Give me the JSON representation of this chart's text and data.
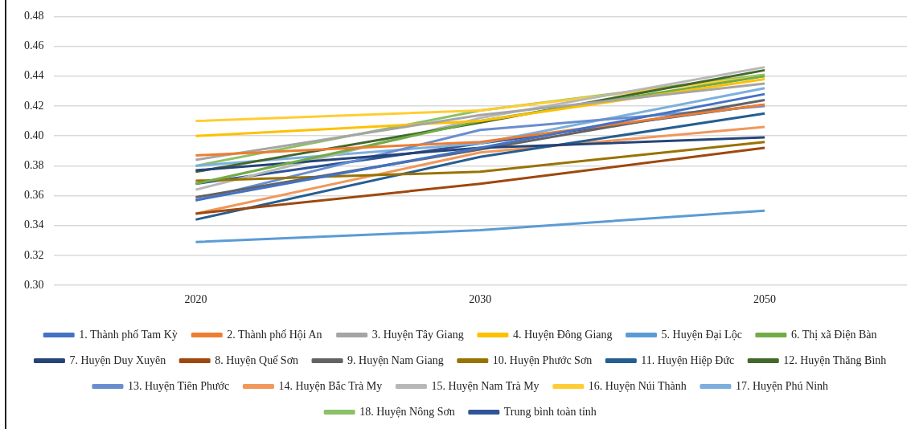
{
  "chart_data": {
    "type": "line",
    "categories": [
      "2020",
      "2030",
      "2050"
    ],
    "ylim": [
      0.3,
      0.48
    ],
    "yticks": [
      {
        "value": 0.3,
        "label": "0.30"
      },
      {
        "value": 0.32,
        "label": "0.32"
      },
      {
        "value": 0.34,
        "label": "0.34"
      },
      {
        "value": 0.36,
        "label": "0.36"
      },
      {
        "value": 0.38,
        "label": "0.38"
      },
      {
        "value": 0.4,
        "label": "0.40"
      },
      {
        "value": 0.42,
        "label": "0.42"
      },
      {
        "value": 0.44,
        "label": "0.44"
      },
      {
        "value": 0.46,
        "label": "0.46"
      },
      {
        "value": 0.48,
        "label": "0.48"
      }
    ],
    "grid": "y",
    "legend": "bottom",
    "marker": "none",
    "line_style": "solid",
    "series": [
      {
        "name": "1. Thành phố Tam Kỳ",
        "color": "#4472c4",
        "values": [
          0.357,
          0.392,
          0.428
        ]
      },
      {
        "name": "2. Thành phố Hội An",
        "color": "#ed7d31",
        "values": [
          0.387,
          0.396,
          0.421
        ]
      },
      {
        "name": "3. Huyện Tây Giang",
        "color": "#a5a5a5",
        "values": [
          0.384,
          0.414,
          0.435
        ]
      },
      {
        "name": "4. Huyện Đông Giang",
        "color": "#ffc000",
        "values": [
          0.4,
          0.41,
          0.438
        ]
      },
      {
        "name": "5. Huyện Đại Lộc",
        "color": "#5b9bd5",
        "values": [
          0.329,
          0.337,
          0.35
        ]
      },
      {
        "name": "6. Thị xã Điện Bàn",
        "color": "#70ad47",
        "values": [
          0.368,
          0.41,
          0.44
        ]
      },
      {
        "name": "7. Huyện Duy Xuyên",
        "color": "#264478",
        "values": [
          0.377,
          0.392,
          0.399
        ]
      },
      {
        "name": "8. Huyện Quế Sơn",
        "color": "#9e480e",
        "values": [
          0.348,
          0.368,
          0.392
        ]
      },
      {
        "name": "9. Huyện Nam Giang",
        "color": "#636363",
        "values": [
          0.359,
          0.391,
          0.424
        ]
      },
      {
        "name": "10. Huyện Phước Sơn",
        "color": "#997300",
        "values": [
          0.37,
          0.376,
          0.396
        ]
      },
      {
        "name": "11. Huyện Hiệp Đức",
        "color": "#255e91",
        "values": [
          0.344,
          0.386,
          0.415
        ]
      },
      {
        "name": "12. Huyện Thăng Bình",
        "color": "#43682b",
        "values": [
          0.376,
          0.409,
          0.444
        ]
      },
      {
        "name": "13. Huyện Tiên Phước",
        "color": "#698ed0",
        "values": [
          0.357,
          0.404,
          0.42
        ]
      },
      {
        "name": "14. Huyện Bắc Trà My",
        "color": "#f1975a",
        "values": [
          0.348,
          0.389,
          0.406
        ]
      },
      {
        "name": "15. Huyện Nam Trà My",
        "color": "#b7b7b7",
        "values": [
          0.364,
          0.412,
          0.446
        ]
      },
      {
        "name": "16. Huyện Núi Thành",
        "color": "#ffcd33",
        "values": [
          0.41,
          0.417,
          0.44
        ]
      },
      {
        "name": "17. Huyện Phú Ninh",
        "color": "#7cafdd",
        "values": [
          0.38,
          0.395,
          0.432
        ]
      },
      {
        "name": "18. Huyện Nông Sơn",
        "color": "#8cc168",
        "values": [
          0.38,
          0.417,
          0.441
        ]
      },
      {
        "name": "Trung bình toàn tỉnh",
        "color": "#2f5597",
        "values": [
          0.368,
          0.395,
          0.421
        ]
      }
    ]
  }
}
